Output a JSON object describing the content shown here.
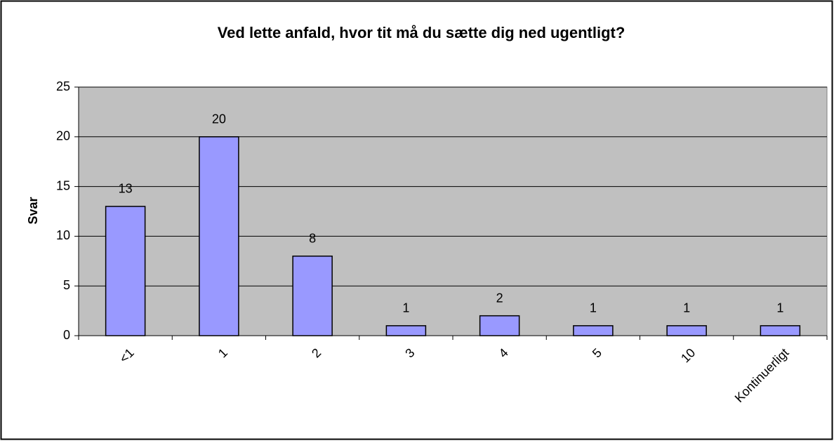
{
  "chart_data": {
    "type": "bar",
    "title": "Ved lette anfald, hvor tit må du sætte dig ned ugentligt?",
    "y_label": "Svar",
    "categories": [
      "<1",
      "1",
      "2",
      "3",
      "4",
      "5",
      "10",
      "Kontinuerligt"
    ],
    "values": [
      13,
      20,
      8,
      1,
      2,
      1,
      1,
      1
    ],
    "color": "#9999ff",
    "plot_background": "#c0c0c0",
    "ylim": [
      0,
      25
    ],
    "yticks": [
      0,
      5,
      10,
      15,
      20,
      25
    ],
    "grid": true
  }
}
